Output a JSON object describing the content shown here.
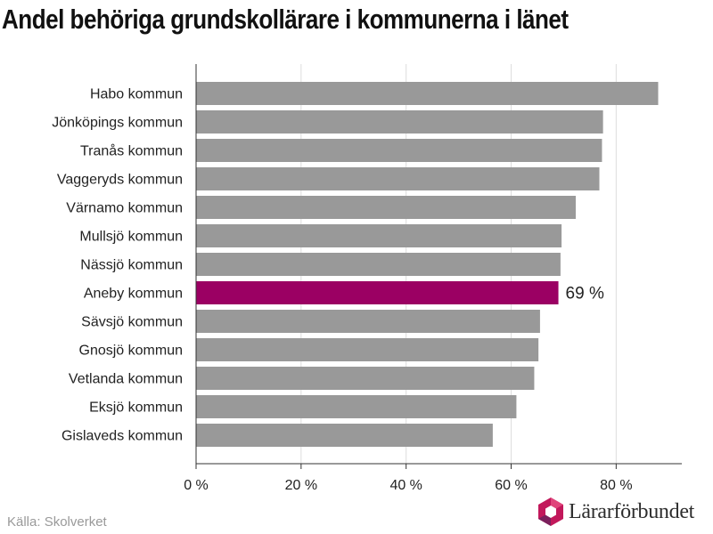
{
  "title": "Andel behöriga grundskollärare i kommunerna i länet",
  "source": "Källa: Skolverket",
  "logo_text": "Lärarförbundet",
  "colors": {
    "bar": "#999999",
    "highlight": "#9b0063",
    "grid": "#dddddd",
    "axis": "#333333",
    "text": "#222222",
    "logo_pink": "#c2185b",
    "logo_purple": "#7b1f5c"
  },
  "chart_data": {
    "type": "bar",
    "orientation": "horizontal",
    "categories": [
      "Habo kommun",
      "Jönköpings kommun",
      "Tranås kommun",
      "Vaggeryds kommun",
      "Värnamo kommun",
      "Mullsjö kommun",
      "Nässjö kommun",
      "Aneby kommun",
      "Sävsjö kommun",
      "Gnosjö kommun",
      "Vetlanda kommun",
      "Eksjö kommun",
      "Gislaveds kommun"
    ],
    "values": [
      88,
      77.5,
      77.3,
      76.8,
      72.3,
      69.6,
      69.4,
      69,
      65.5,
      65.2,
      64.4,
      61,
      56.5
    ],
    "highlight_index": 7,
    "highlight_label": "69 %",
    "xlim": [
      0,
      92.5
    ],
    "xticks": [
      0,
      20,
      40,
      60,
      80
    ],
    "xtick_labels": [
      "0 %",
      "20 %",
      "40 %",
      "60 %",
      "80 %"
    ],
    "grid": true,
    "xlabel": "",
    "ylabel": ""
  }
}
